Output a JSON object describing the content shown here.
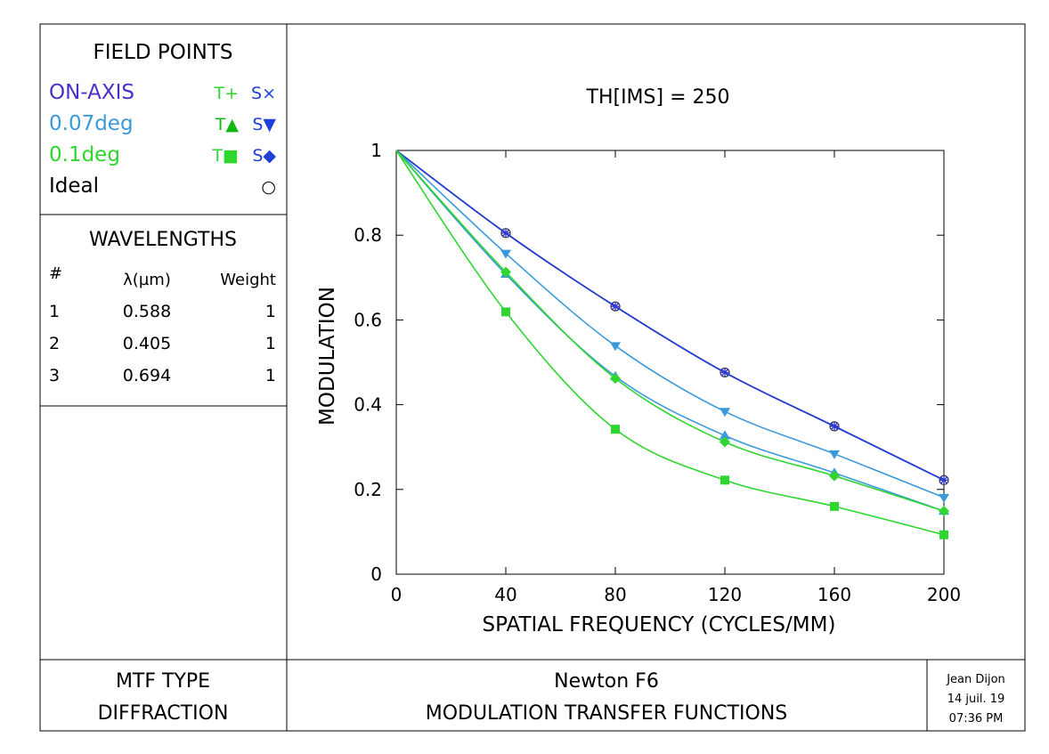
{
  "field_points": {
    "title": "FIELD POINTS",
    "rows": [
      {
        "name": "ON-AXIS",
        "t": "T+",
        "s": "S×",
        "name_color": "#4b2fc9",
        "t_color": "#2fd62f",
        "s_color": "#1f3fd6"
      },
      {
        "name": "0.07deg",
        "t": "T▲",
        "s": "S▼",
        "name_color": "#3a9ad9",
        "t_color": "#11b811",
        "s_color": "#1f3fd6"
      },
      {
        "name": "0.1deg",
        "t": "T■",
        "s": "S◆",
        "name_color": "#2fd62f",
        "t_color": "#2fd62f",
        "s_color": "#1f3fd6"
      },
      {
        "name": "Ideal",
        "t": "",
        "s": "○",
        "name_color": "#000000",
        "t_color": "#000000",
        "s_color": "#000000"
      }
    ]
  },
  "wavelengths": {
    "title": "WAVELENGTHS",
    "headers": [
      "#",
      "λ(µm)",
      "Weight"
    ],
    "rows": [
      [
        "1",
        "0.588",
        "1"
      ],
      [
        "2",
        "0.405",
        "1"
      ],
      [
        "3",
        "0.694",
        "1"
      ]
    ]
  },
  "mtf_type": {
    "line1": "MTF TYPE",
    "line2": "DIFFRACTION"
  },
  "footer": {
    "title1": "Newton F6",
    "title2": "MODULATION TRANSFER FUNCTIONS"
  },
  "author": {
    "name": "Jean Dijon",
    "date": "14 juil. 19",
    "time": "07:36 PM"
  },
  "chart_data": {
    "type": "line",
    "title": "TH[IMS] = 250",
    "xlabel": "SPATIAL FREQUENCY (CYCLES/MM)",
    "ylabel": "MODULATION",
    "xlim": [
      0,
      200
    ],
    "ylim": [
      0,
      1
    ],
    "xticks": [
      0,
      40,
      80,
      120,
      160,
      200
    ],
    "yticks": [
      0,
      0.2,
      0.4,
      0.6,
      0.8,
      1
    ],
    "ytick_labels": [
      "0",
      "0.2",
      "0.4",
      "0.6",
      "0.8",
      "1"
    ],
    "x": [
      0,
      40,
      80,
      120,
      160,
      200
    ],
    "series": [
      {
        "name": "Ideal",
        "color": "#333333",
        "marker": "circle",
        "values": [
          1,
          0.805,
          0.632,
          0.476,
          0.349,
          0.222
        ]
      },
      {
        "name": "ON-AXIS T",
        "color": "#4b2fc9",
        "marker": "plus",
        "values": [
          1,
          0.805,
          0.632,
          0.476,
          0.349,
          0.222
        ]
      },
      {
        "name": "ON-AXIS S",
        "color": "#1f3fd6",
        "marker": "x",
        "values": [
          1,
          0.805,
          0.632,
          0.476,
          0.349,
          0.222
        ]
      },
      {
        "name": "0.07deg T",
        "color": "#3a9ad9",
        "marker": "triangle-up",
        "values": [
          1,
          0.708,
          0.467,
          0.327,
          0.239,
          0.149
        ]
      },
      {
        "name": "0.07deg S",
        "color": "#3a9ad9",
        "marker": "triangle-down",
        "values": [
          1,
          0.757,
          0.539,
          0.384,
          0.284,
          0.181
        ]
      },
      {
        "name": "0.1deg T",
        "color": "#2fd62f",
        "marker": "square",
        "values": [
          1,
          0.619,
          0.342,
          0.222,
          0.16,
          0.093
        ]
      },
      {
        "name": "0.1deg S",
        "color": "#2fd62f",
        "marker": "diamond",
        "values": [
          1,
          0.713,
          0.462,
          0.312,
          0.232,
          0.149
        ]
      }
    ]
  }
}
